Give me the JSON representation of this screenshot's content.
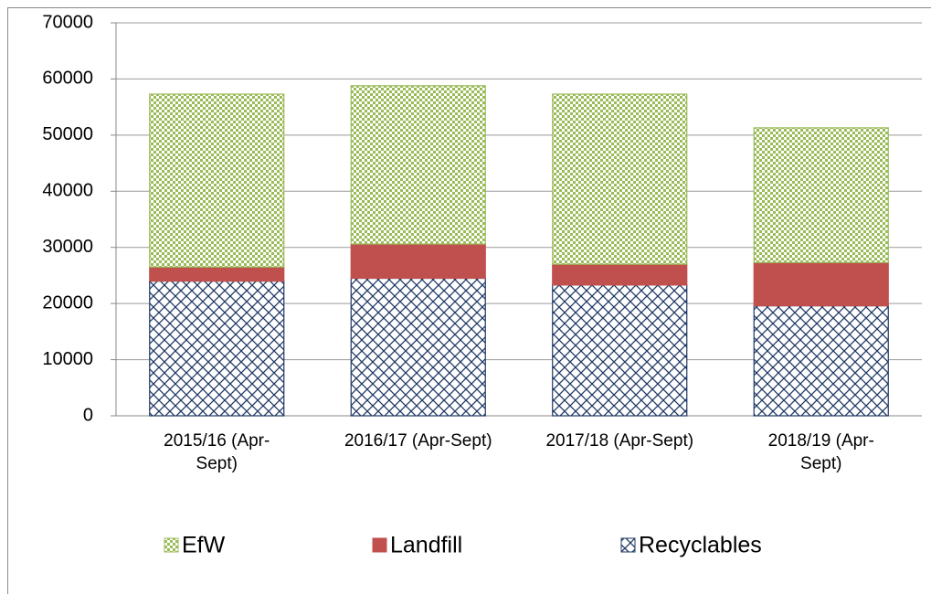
{
  "chart_data": {
    "type": "stacked_bar",
    "categories": [
      "2015/16 (Apr-Sept)",
      "2016/17  (Apr-Sept)",
      "2017/18  (Apr-Sept)",
      "2018/19 (Apr-Sept)"
    ],
    "series": [
      {
        "name": "EfW",
        "color": "#9bbb59",
        "values": [
          30800,
          28200,
          30300,
          24000
        ]
      },
      {
        "name": "Landfill",
        "color": "#c0504d",
        "values": [
          2500,
          6100,
          3700,
          7700
        ]
      },
      {
        "name": "Recyclables",
        "color": "#1f3864",
        "values": [
          24000,
          24500,
          23300,
          19600
        ]
      }
    ],
    "ylim": [
      0,
      70000
    ],
    "yticks": [
      0,
      10000,
      20000,
      30000,
      40000,
      50000,
      60000,
      70000
    ],
    "grid": true
  }
}
